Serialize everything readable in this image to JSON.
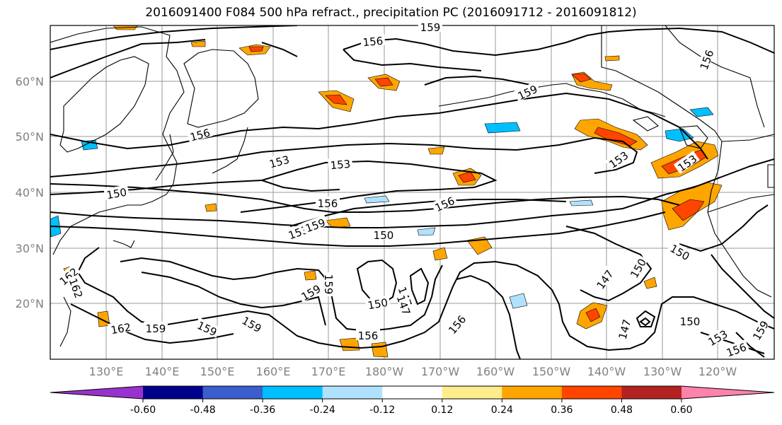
{
  "title": "2016091400 F084 500 hPa refract., precipitation PC (2016091712 - 2016091812)",
  "map": {
    "lat_labels": [
      "60°N",
      "50°N",
      "40°N",
      "30°N",
      "20°N"
    ],
    "lon_labels": [
      "130°E",
      "140°E",
      "150°E",
      "160°E",
      "170°E",
      "180°W",
      "170°W",
      "160°W",
      "150°W",
      "140°W",
      "130°W",
      "120°W"
    ],
    "lat_range": [
      10,
      70
    ],
    "lon_range": [
      120,
      250
    ],
    "grid": true
  },
  "contour_labels": [
    "156",
    "159",
    "156",
    "159",
    "156",
    "153",
    "153",
    "153",
    "150",
    "156",
    "153",
    "156",
    "159",
    "153",
    "150",
    "150",
    "147",
    "150",
    "147",
    "162",
    "159",
    "159",
    "162",
    "162",
    "159",
    "159",
    "150",
    "147",
    "156",
    "156",
    "150",
    "153",
    "156",
    "159",
    "147",
    "159"
  ],
  "colorbar": {
    "ticks": [
      "-0.60",
      "-0.48",
      "-0.36",
      "-0.24",
      "-0.12",
      "0.12",
      "0.24",
      "0.36",
      "0.48",
      "0.60"
    ],
    "colors": [
      "#9932cc",
      "#00008b",
      "#3a5fcd",
      "#00bfff",
      "#b0e2ff",
      "#ffffff",
      "#ffec8b",
      "#ffa500",
      "#ff4500",
      "#b22222",
      "#ff82ab"
    ],
    "extend": "both"
  }
}
